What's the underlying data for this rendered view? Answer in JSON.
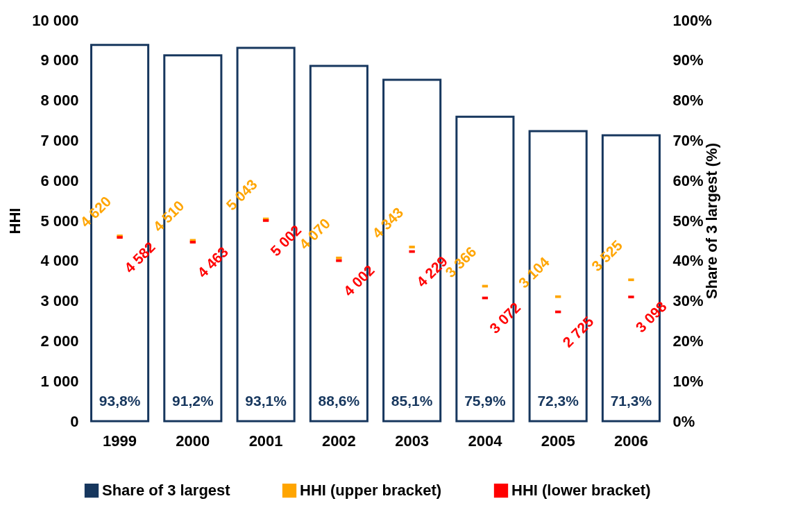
{
  "chart_data": {
    "type": "bar",
    "categories": [
      "1999",
      "2000",
      "2001",
      "2002",
      "2003",
      "2004",
      "2005",
      "2006"
    ],
    "ylabel": "HHI",
    "y2label": "Share of 3 largest (%)",
    "ylim": [
      0,
      10000
    ],
    "yticks": [
      0,
      {
        "value": 1000,
        "label": "1 000"
      },
      {
        "value": 2000,
        "label": "2 000"
      },
      {
        "value": 3000,
        "label": "3 000"
      },
      {
        "value": 4000,
        "label": "4 000"
      },
      {
        "value": 5000,
        "label": "5 000"
      },
      {
        "value": 6000,
        "label": "6 000"
      },
      {
        "value": 7000,
        "label": "7 000"
      },
      {
        "value": 8000,
        "label": "8 000"
      },
      {
        "value": 9000,
        "label": "9 000"
      },
      {
        "value": 10000,
        "label": "10 000"
      }
    ],
    "y2lim": [
      0,
      100
    ],
    "y2ticks": [
      {
        "value": 0,
        "label": "0%"
      },
      {
        "value": 10,
        "label": "10%"
      },
      {
        "value": 20,
        "label": "20%"
      },
      {
        "value": 30,
        "label": "30%"
      },
      {
        "value": 40,
        "label": "40%"
      },
      {
        "value": 50,
        "label": "50%"
      },
      {
        "value": 60,
        "label": "60%"
      },
      {
        "value": 70,
        "label": "70%"
      },
      {
        "value": 80,
        "label": "80%"
      },
      {
        "value": 90,
        "label": "90%"
      },
      {
        "value": 100,
        "label": "100%"
      }
    ],
    "legend": "bottom",
    "series": [
      {
        "name": "Share of 3 largest",
        "axis": "y2",
        "color": "#17375e",
        "values": [
          93.8,
          91.2,
          93.1,
          88.6,
          85.1,
          75.9,
          72.3,
          71.3
        ],
        "value_labels": [
          "93,8%",
          "91,2%",
          "93,1%",
          "88,6%",
          "85,1%",
          "75,9%",
          "72,3%",
          "71,3%"
        ]
      },
      {
        "name": "HHI (upper bracket)",
        "type": "scatter",
        "color": "#ffa500",
        "values": [
          4620,
          4510,
          5043,
          4070,
          4343,
          3366,
          3104,
          3525
        ],
        "value_labels": [
          "4 620",
          "4 510",
          "5 043",
          "4 070",
          "4 343",
          "3 366",
          "3 104",
          "3 525"
        ]
      },
      {
        "name": "HHI (lower bracket)",
        "type": "scatter",
        "color": "#ff0000",
        "values": [
          4582,
          4463,
          5002,
          4002,
          4229,
          3072,
          2725,
          3098
        ],
        "value_labels": [
          "4 582",
          "4 463",
          "5 002",
          "4 002",
          "4 229",
          "3 072",
          "2 725",
          "3 098"
        ]
      }
    ]
  }
}
